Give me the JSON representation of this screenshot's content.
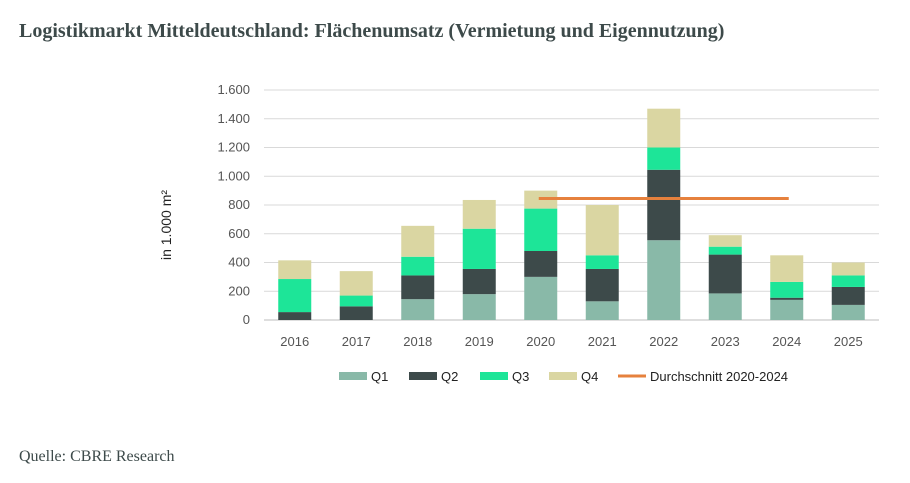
{
  "page": {
    "title": "Logistikmarkt Mitteldeutschland: Flächenumsatz (Vermietung und Eigennutzung)",
    "source": "Quelle: CBRE Research"
  },
  "chart_data": {
    "type": "bar",
    "stacked": true,
    "ylabel": "in 1.000 m²",
    "ylim": [
      0,
      1600
    ],
    "yticks": [
      0,
      200,
      400,
      600,
      800,
      1000,
      1200,
      1400,
      1600
    ],
    "ytick_labels": [
      "0",
      "200",
      "400",
      "600",
      "800",
      "1.000",
      "1.200",
      "1.400",
      "1.600"
    ],
    "grid": true,
    "legend_position": "bottom",
    "categories": [
      "2016",
      "2017",
      "2018",
      "2019",
      "2020",
      "2021",
      "2022",
      "2023",
      "2024",
      "2025"
    ],
    "series": [
      {
        "name": "Q1",
        "color": "#89b9a8",
        "values": [
          0,
          0,
          145,
          180,
          300,
          130,
          555,
          185,
          140,
          105
        ]
      },
      {
        "name": "Q2",
        "color": "#3d4a4a",
        "values": [
          55,
          95,
          165,
          175,
          180,
          225,
          490,
          270,
          15,
          125
        ]
      },
      {
        "name": "Q3",
        "color": "#1de598",
        "values": [
          230,
          75,
          130,
          280,
          295,
          95,
          155,
          55,
          110,
          80
        ]
      },
      {
        "name": "Q4",
        "color": "#dad6a2",
        "values": [
          130,
          170,
          215,
          200,
          125,
          350,
          270,
          80,
          185,
          90
        ]
      }
    ],
    "reference_line": {
      "name": "Durchschnitt 2020-2024",
      "color": "#e6813d",
      "value": 845,
      "from": "2020",
      "to": "2024"
    }
  }
}
